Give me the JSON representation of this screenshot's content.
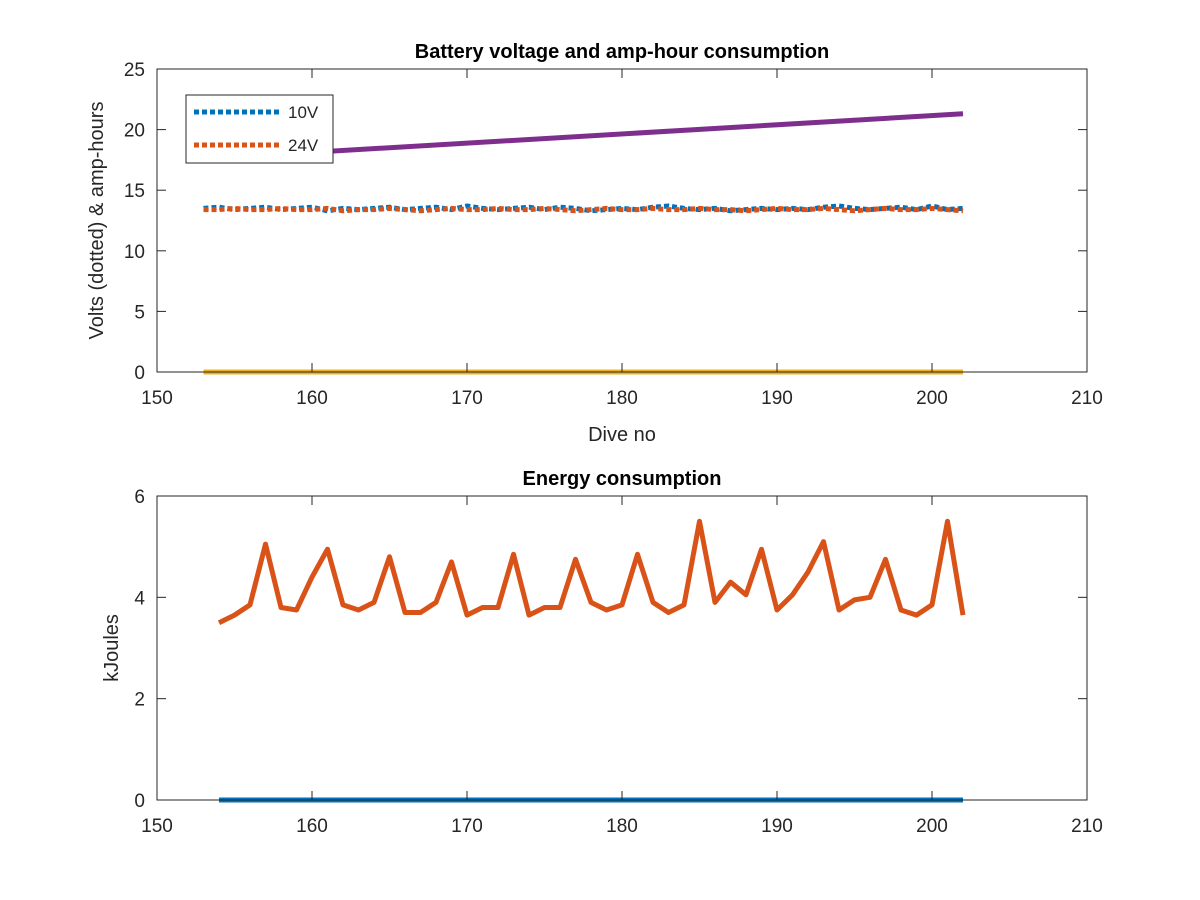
{
  "chart_data": [
    {
      "type": "line",
      "title": "Battery voltage and amp-hour consumption",
      "xlabel": "Dive no",
      "ylabel": "Volts (dotted) & amp-hours",
      "xlim": [
        150,
        210
      ],
      "ylim": [
        0,
        25
      ],
      "xticks": [
        "150",
        "160",
        "170",
        "180",
        "190",
        "200",
        "210"
      ],
      "yticks": [
        "0",
        "5",
        "10",
        "15",
        "20",
        "25"
      ],
      "grid": false,
      "legend_position": "top-left",
      "series": [
        {
          "name": "10V",
          "style": "dotted",
          "color": "#0072BD",
          "x": [
            153,
            154,
            155,
            156,
            157,
            158,
            159,
            160,
            161,
            162,
            163,
            164,
            165,
            166,
            167,
            168,
            169,
            170,
            171,
            172,
            173,
            174,
            175,
            176,
            177,
            178,
            179,
            180,
            181,
            182,
            183,
            184,
            185,
            186,
            187,
            188,
            189,
            190,
            191,
            192,
            193,
            194,
            195,
            196,
            197,
            198,
            199,
            200,
            201,
            202
          ],
          "y": [
            13.5,
            13.6,
            13.4,
            13.5,
            13.6,
            13.4,
            13.5,
            13.6,
            13.3,
            13.5,
            13.4,
            13.5,
            13.6,
            13.4,
            13.5,
            13.6,
            13.4,
            13.7,
            13.5,
            13.4,
            13.5,
            13.6,
            13.4,
            13.6,
            13.5,
            13.3,
            13.4,
            13.5,
            13.4,
            13.6,
            13.7,
            13.5,
            13.4,
            13.5,
            13.3,
            13.4,
            13.5,
            13.4,
            13.5,
            13.4,
            13.6,
            13.7,
            13.5,
            13.4,
            13.5,
            13.6,
            13.4,
            13.7,
            13.4,
            13.5
          ]
        },
        {
          "name": "24V",
          "style": "dotted",
          "color": "#D95319",
          "x": [
            153,
            154,
            155,
            156,
            157,
            158,
            159,
            160,
            161,
            162,
            163,
            164,
            165,
            166,
            167,
            168,
            169,
            170,
            171,
            172,
            173,
            174,
            175,
            176,
            177,
            178,
            179,
            180,
            181,
            182,
            183,
            184,
            185,
            186,
            187,
            188,
            189,
            190,
            191,
            192,
            193,
            194,
            195,
            196,
            197,
            198,
            199,
            200,
            201,
            202
          ],
          "y": [
            13.4,
            13.4,
            13.5,
            13.4,
            13.4,
            13.5,
            13.4,
            13.4,
            13.5,
            13.3,
            13.4,
            13.4,
            13.5,
            13.4,
            13.3,
            13.4,
            13.5,
            13.4,
            13.4,
            13.5,
            13.4,
            13.4,
            13.5,
            13.4,
            13.3,
            13.4,
            13.5,
            13.4,
            13.4,
            13.5,
            13.4,
            13.4,
            13.5,
            13.4,
            13.4,
            13.3,
            13.4,
            13.5,
            13.4,
            13.4,
            13.5,
            13.4,
            13.3,
            13.4,
            13.5,
            13.4,
            13.4,
            13.5,
            13.4,
            13.3
          ]
        },
        {
          "style": "solid",
          "color": "#EDB120",
          "x": [
            153,
            202
          ],
          "y": [
            0,
            0
          ]
        },
        {
          "style": "solid",
          "color": "#7E2F8E",
          "x": [
            153,
            202
          ],
          "y": [
            17.6,
            21.3
          ]
        }
      ]
    },
    {
      "type": "line",
      "title": "Energy consumption",
      "xlabel": "",
      "ylabel": "kJoules",
      "xlim": [
        150,
        210
      ],
      "ylim": [
        0,
        6
      ],
      "xticks": [
        "150",
        "160",
        "170",
        "180",
        "190",
        "200",
        "210"
      ],
      "yticks": [
        "0",
        "2",
        "4",
        "6"
      ],
      "grid": false,
      "series": [
        {
          "style": "solid",
          "color": "#0072BD",
          "x": [
            154,
            202
          ],
          "y": [
            0,
            0
          ]
        },
        {
          "style": "solid",
          "color": "#D95319",
          "x": [
            154,
            155,
            156,
            157,
            158,
            159,
            160,
            161,
            162,
            163,
            164,
            165,
            166,
            167,
            168,
            169,
            170,
            171,
            172,
            173,
            174,
            175,
            176,
            177,
            178,
            179,
            180,
            181,
            182,
            183,
            184,
            185,
            186,
            187,
            188,
            189,
            190,
            191,
            192,
            193,
            194,
            195,
            196,
            197,
            198,
            199,
            200,
            201,
            202
          ],
          "y": [
            3.5,
            3.65,
            3.85,
            5.05,
            3.8,
            3.75,
            4.4,
            4.95,
            3.85,
            3.75,
            3.9,
            4.8,
            3.7,
            3.7,
            3.9,
            4.7,
            3.65,
            3.8,
            3.8,
            4.85,
            3.65,
            3.8,
            3.8,
            4.75,
            3.9,
            3.75,
            3.85,
            4.85,
            3.9,
            3.7,
            3.85,
            5.5,
            3.9,
            4.3,
            4.05,
            4.95,
            3.75,
            4.05,
            4.5,
            5.1,
            3.75,
            3.95,
            4.0,
            4.75,
            3.75,
            3.65,
            3.85,
            5.5,
            3.65
          ]
        }
      ]
    }
  ]
}
